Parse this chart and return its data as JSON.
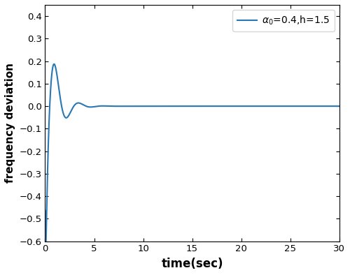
{
  "title": "",
  "xlabel": "time(sec)",
  "ylabel": "frequency deviation",
  "xlim": [
    0,
    30
  ],
  "ylim": [
    -0.6,
    0.45
  ],
  "xticks": [
    0,
    5,
    10,
    15,
    20,
    25,
    30
  ],
  "yticks": [
    -0.6,
    -0.5,
    -0.4,
    -0.3,
    -0.2,
    -0.1,
    0.0,
    0.1,
    0.2,
    0.3,
    0.4
  ],
  "line_color": "#2878b5",
  "line_width": 1.5,
  "background_color": "#ffffff"
}
